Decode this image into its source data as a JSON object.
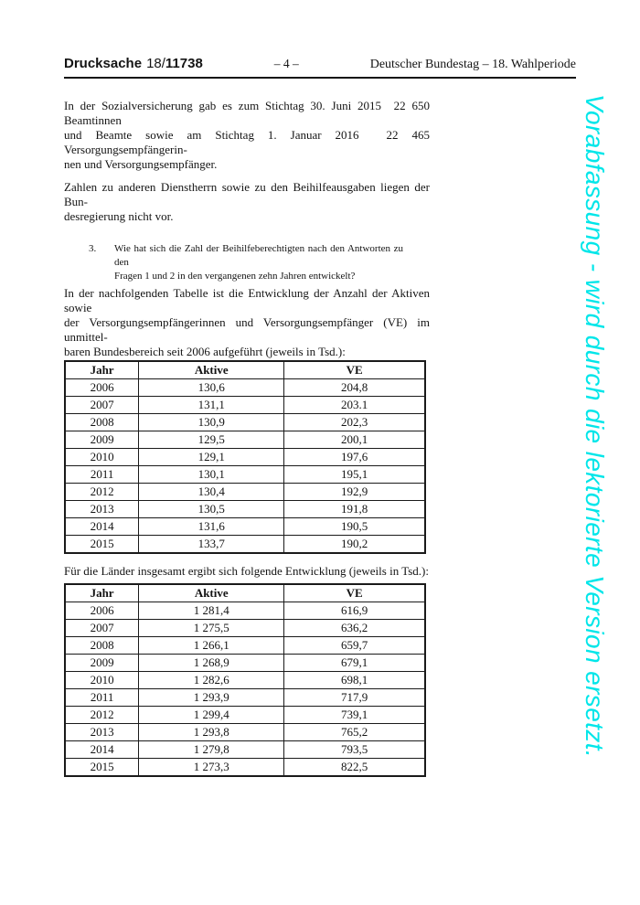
{
  "header": {
    "doc_type": "Drucksache",
    "doc_number_prefix": "18/",
    "doc_number": "11738",
    "page_number": "– 4 –",
    "right_title": "Deutscher Bundestag – 18. Wahlperiode"
  },
  "content": {
    "para1_lines": [
      "In der Sozialversicherung gab es zum Stichtag 30. Juni 2015  22 650 Beamtinnen",
      "und Beamte sowie am Stichtag 1. Januar 2016  22 465 Versorgungsempfängerin-",
      "nen und Versorgungsempfänger."
    ],
    "para2_lines": [
      "Zahlen zu anderen Dienstherrn sowie zu den Beihilfeausgaben liegen der Bun-",
      "desregierung nicht vor."
    ],
    "question": {
      "number": "3.",
      "lines": [
        "Wie hat sich die Zahl der Beihilfeberechtigten nach den Antworten zu den",
        "Fragen 1 und 2 in den vergangenen zehn Jahren entwickelt?"
      ]
    },
    "para3_lines": [
      "In der nachfolgenden Tabelle ist die Entwicklung der Anzahl der Aktiven sowie",
      "der Versorgungsempfängerinnen und Versorgungsempfänger (VE) im unmittel-",
      "baren Bundesbereich seit 2006 aufgeführt (jeweils in Tsd.):"
    ],
    "para4": "Für die Länder insgesamt ergibt sich folgende Entwicklung (jeweils in Tsd.):"
  },
  "table_bund": {
    "headers": [
      "Jahr",
      "Aktive",
      "VE"
    ],
    "rows": [
      [
        "2006",
        "130,6",
        "204,8"
      ],
      [
        "2007",
        "131,1",
        "203.1"
      ],
      [
        "2008",
        "130,9",
        "202,3"
      ],
      [
        "2009",
        "129,5",
        "200,1"
      ],
      [
        "2010",
        "129,1",
        "197,6"
      ],
      [
        "2011",
        "130,1",
        "195,1"
      ],
      [
        "2012",
        "130,4",
        "192,9"
      ],
      [
        "2013",
        "130,5",
        "191,8"
      ],
      [
        "2014",
        "131,6",
        "190,5"
      ],
      [
        "2015",
        "133,7",
        "190,2"
      ]
    ]
  },
  "table_laender": {
    "headers": [
      "Jahr",
      "Aktive",
      "VE"
    ],
    "rows": [
      [
        "2006",
        "1 281,4",
        "616,9"
      ],
      [
        "2007",
        "1 275,5",
        "636,2"
      ],
      [
        "2008",
        "1 266,1",
        "659,7"
      ],
      [
        "2009",
        "1 268,9",
        "679,1"
      ],
      [
        "2010",
        "1 282,6",
        "698,1"
      ],
      [
        "2011",
        "1 293,9",
        "717,9"
      ],
      [
        "2012",
        "1 299,4",
        "739,1"
      ],
      [
        "2013",
        "1 293,8",
        "765,2"
      ],
      [
        "2014",
        "1 279,8",
        "793,5"
      ],
      [
        "2015",
        "1 273,3",
        "822,5"
      ]
    ]
  },
  "watermark": {
    "text": "Vorabfassung - wird durch die lektorierte Version ersetzt.",
    "color": "#00e6e9"
  }
}
